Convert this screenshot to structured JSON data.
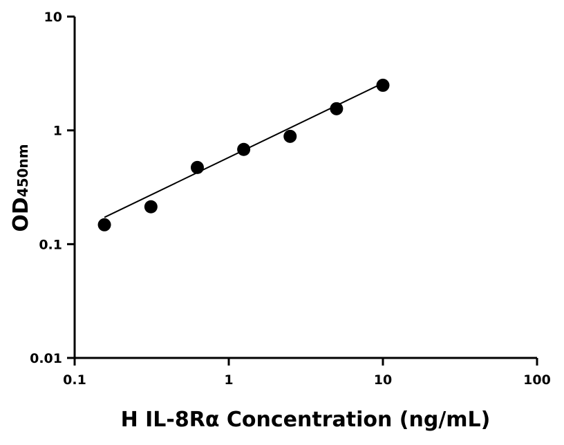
{
  "chart_data": {
    "type": "scatter",
    "title": "",
    "xlabel": "H IL-8Rα Concentration (ng/mL)",
    "ylabel": "OD",
    "ylabel_subscript": "450nm",
    "xscale": "log",
    "yscale": "log",
    "xlim": [
      0.1,
      100
    ],
    "ylim": [
      0.01,
      10
    ],
    "xticks": [
      0.1,
      1,
      10,
      100
    ],
    "xtick_labels": [
      "0.1",
      "1",
      "10",
      "100"
    ],
    "yticks": [
      0.01,
      0.1,
      1,
      10
    ],
    "ytick_labels": [
      "0.01",
      "0.1",
      "1",
      "10"
    ],
    "grid": false,
    "series": [
      {
        "x": [
          0.156,
          0.3125,
          0.625,
          1.25,
          2.5,
          5,
          10
        ],
        "y": [
          0.148,
          0.213,
          0.472,
          0.68,
          0.886,
          1.55,
          2.49
        ],
        "marker_color": "#000000"
      }
    ],
    "fit_line": {
      "x": [
        0.156,
        10
      ],
      "y": [
        0.172,
        2.6
      ],
      "color": "#000000"
    }
  }
}
